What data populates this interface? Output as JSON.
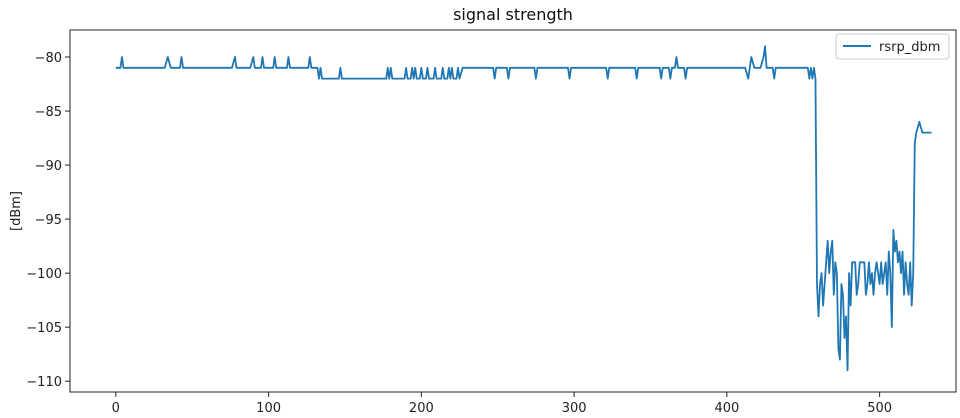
{
  "chart_data": {
    "type": "line",
    "title": "signal strength",
    "xlabel": "",
    "ylabel": "[dBm]",
    "xlim": [
      -30,
      550
    ],
    "ylim": [
      -111,
      -77.5
    ],
    "xticks": [
      0,
      100,
      200,
      300,
      400,
      500
    ],
    "yticks": [
      -110,
      -105,
      -100,
      -95,
      -90,
      -85,
      -80
    ],
    "grid": false,
    "legend_position": "top-right",
    "series": [
      {
        "name": "rsrp_dbm",
        "color": "#1f77b4",
        "points": [
          [
            0,
            -81
          ],
          [
            3,
            -81
          ],
          [
            4,
            -80
          ],
          [
            5,
            -81
          ],
          [
            32,
            -81
          ],
          [
            34,
            -80
          ],
          [
            36,
            -81
          ],
          [
            42,
            -81
          ],
          [
            43,
            -80
          ],
          [
            44,
            -81
          ],
          [
            76,
            -81
          ],
          [
            78,
            -80
          ],
          [
            79,
            -81
          ],
          [
            88,
            -81
          ],
          [
            90,
            -80
          ],
          [
            91,
            -81
          ],
          [
            95,
            -81
          ],
          [
            96,
            -80
          ],
          [
            97,
            -81
          ],
          [
            103,
            -81
          ],
          [
            104,
            -80
          ],
          [
            105,
            -81
          ],
          [
            112,
            -81
          ],
          [
            113,
            -80
          ],
          [
            114,
            -81
          ],
          [
            126,
            -81
          ],
          [
            127,
            -80
          ],
          [
            128,
            -81
          ],
          [
            132,
            -81
          ],
          [
            133,
            -82
          ],
          [
            134,
            -81
          ],
          [
            135,
            -82
          ],
          [
            146,
            -82
          ],
          [
            147,
            -81
          ],
          [
            148,
            -82
          ],
          [
            177,
            -82
          ],
          [
            178,
            -81
          ],
          [
            179,
            -82
          ],
          [
            180,
            -81
          ],
          [
            181,
            -82
          ],
          [
            189,
            -82
          ],
          [
            190,
            -81
          ],
          [
            191,
            -82
          ],
          [
            193,
            -82
          ],
          [
            194,
            -81
          ],
          [
            195,
            -82
          ],
          [
            196,
            -81
          ],
          [
            197,
            -82
          ],
          [
            199,
            -82
          ],
          [
            200,
            -81
          ],
          [
            201,
            -82
          ],
          [
            203,
            -82
          ],
          [
            204,
            -81
          ],
          [
            205,
            -82
          ],
          [
            208,
            -82
          ],
          [
            209,
            -81
          ],
          [
            210,
            -82
          ],
          [
            213,
            -82
          ],
          [
            214,
            -81
          ],
          [
            215,
            -82
          ],
          [
            217,
            -82
          ],
          [
            218,
            -81
          ],
          [
            219,
            -82
          ],
          [
            220,
            -81
          ],
          [
            221,
            -82
          ],
          [
            223,
            -82
          ],
          [
            224,
            -81
          ],
          [
            225,
            -82
          ],
          [
            227,
            -81
          ],
          [
            247,
            -81
          ],
          [
            248,
            -82
          ],
          [
            249,
            -81
          ],
          [
            256,
            -81
          ],
          [
            257,
            -82
          ],
          [
            258,
            -81
          ],
          [
            274,
            -81
          ],
          [
            275,
            -82
          ],
          [
            276,
            -81
          ],
          [
            296,
            -81
          ],
          [
            297,
            -82
          ],
          [
            298,
            -81
          ],
          [
            321,
            -81
          ],
          [
            322,
            -82
          ],
          [
            323,
            -81
          ],
          [
            340,
            -81
          ],
          [
            341,
            -82
          ],
          [
            342,
            -81
          ],
          [
            356,
            -81
          ],
          [
            357,
            -82
          ],
          [
            358,
            -81
          ],
          [
            362,
            -81
          ],
          [
            363,
            -82
          ],
          [
            364,
            -81
          ],
          [
            366,
            -81
          ],
          [
            367,
            -80
          ],
          [
            368,
            -81
          ],
          [
            372,
            -81
          ],
          [
            373,
            -82
          ],
          [
            374,
            -81
          ],
          [
            412,
            -81
          ],
          [
            414,
            -82
          ],
          [
            416,
            -80
          ],
          [
            418,
            -81
          ],
          [
            422,
            -81
          ],
          [
            424,
            -80
          ],
          [
            425,
            -79
          ],
          [
            426,
            -81
          ],
          [
            430,
            -81
          ],
          [
            431,
            -82
          ],
          [
            432,
            -81
          ],
          [
            453,
            -81
          ],
          [
            454,
            -82
          ],
          [
            455,
            -81
          ],
          [
            456,
            -82
          ],
          [
            457,
            -81
          ],
          [
            458,
            -82
          ],
          [
            459,
            -101
          ],
          [
            460,
            -104
          ],
          [
            461,
            -101
          ],
          [
            462,
            -100
          ],
          [
            463,
            -103
          ],
          [
            464,
            -101
          ],
          [
            465,
            -99
          ],
          [
            466,
            -97
          ],
          [
            467,
            -100
          ],
          [
            468,
            -98
          ],
          [
            469,
            -97
          ],
          [
            470,
            -102
          ],
          [
            471,
            -99
          ],
          [
            472,
            -100
          ],
          [
            473,
            -107
          ],
          [
            474,
            -108
          ],
          [
            475,
            -101
          ],
          [
            476,
            -102
          ],
          [
            477,
            -106
          ],
          [
            478,
            -104
          ],
          [
            479,
            -109
          ],
          [
            480,
            -100
          ],
          [
            481,
            -103
          ],
          [
            482,
            -99
          ],
          [
            484,
            -99
          ],
          [
            485,
            -102
          ],
          [
            486,
            -101
          ],
          [
            487,
            -99
          ],
          [
            490,
            -99
          ],
          [
            491,
            -102
          ],
          [
            492,
            -101
          ],
          [
            493,
            -99
          ],
          [
            494,
            -101
          ],
          [
            495,
            -100
          ],
          [
            496,
            -102
          ],
          [
            497,
            -100
          ],
          [
            498,
            -99
          ],
          [
            499,
            -100
          ],
          [
            500,
            -101
          ],
          [
            501,
            -99
          ],
          [
            502,
            -101
          ],
          [
            503,
            -100
          ],
          [
            504,
            -99
          ],
          [
            505,
            -102
          ],
          [
            506,
            -98
          ],
          [
            507,
            -100
          ],
          [
            508,
            -105
          ],
          [
            509,
            -96
          ],
          [
            510,
            -98
          ],
          [
            511,
            -97
          ],
          [
            512,
            -99
          ],
          [
            513,
            -98
          ],
          [
            514,
            -100
          ],
          [
            515,
            -98
          ],
          [
            516,
            -102
          ],
          [
            517,
            -99
          ],
          [
            518,
            -101
          ],
          [
            519,
            -102
          ],
          [
            520,
            -99
          ],
          [
            521,
            -103
          ],
          [
            522,
            -100
          ],
          [
            523,
            -88
          ],
          [
            524,
            -87
          ],
          [
            526,
            -86
          ],
          [
            528,
            -87
          ],
          [
            534,
            -87
          ]
        ]
      }
    ]
  }
}
